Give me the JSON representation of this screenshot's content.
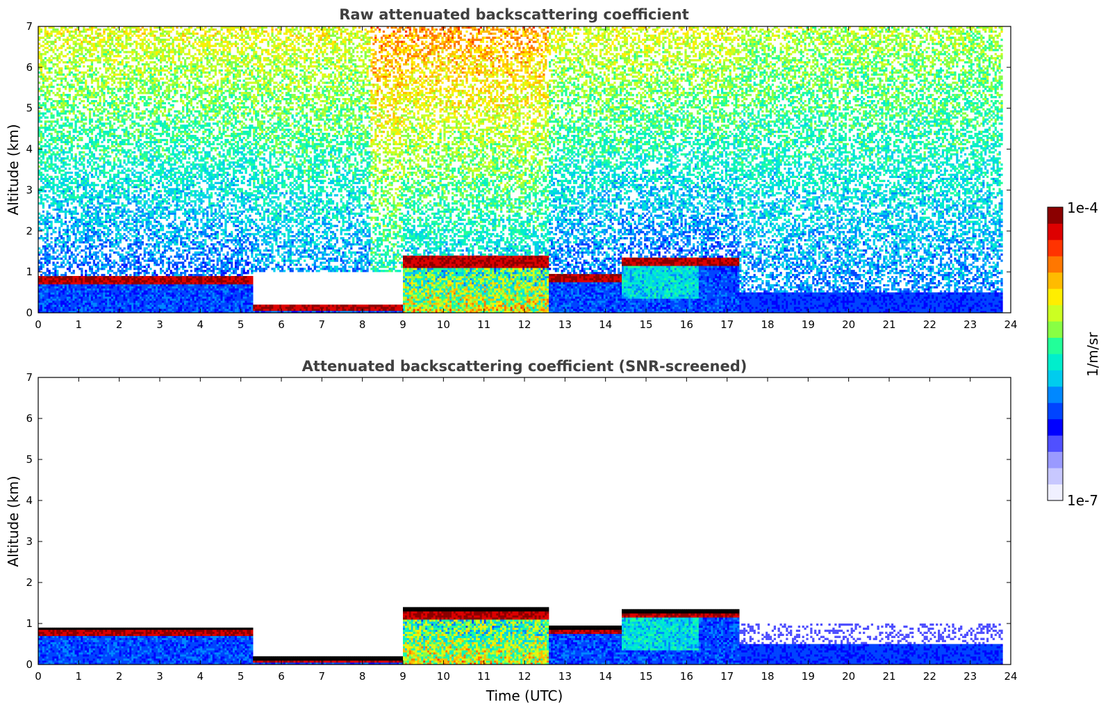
{
  "colors": {
    "title": "#404040",
    "colormap": [
      "#f0f0ff",
      "#c8c8ff",
      "#9a9aff",
      "#5050ff",
      "#0000ff",
      "#0044ff",
      "#0088ff",
      "#00ccee",
      "#00eecc",
      "#22ff99",
      "#88ff44",
      "#ccff22",
      "#ffee00",
      "#ffbb00",
      "#ff7700",
      "#ff3300",
      "#dd0000",
      "#8b0000"
    ],
    "cloud_top": "#000000"
  },
  "colorbar": {
    "max_label": "1e-4",
    "min_label": "1e-7",
    "unit_label": "1/m/sr",
    "scale": "log"
  },
  "chart_data": [
    {
      "type": "heatmap",
      "title": "Raw attenuated backscattering coefficient",
      "xlabel": "",
      "ylabel": "Altitude (km)",
      "xlim": [
        0,
        24
      ],
      "ylim": [
        0,
        7
      ],
      "xticks": [
        "0",
        "1",
        "2",
        "3",
        "4",
        "5",
        "6",
        "7",
        "8",
        "9",
        "10",
        "11",
        "12",
        "13",
        "14",
        "15",
        "16",
        "17",
        "18",
        "19",
        "20",
        "21",
        "22",
        "23",
        "24"
      ],
      "yticks": [
        "0",
        "1",
        "2",
        "3",
        "4",
        "5",
        "6",
        "7"
      ],
      "data_end_time": 23.8,
      "cloud_layers": [
        {
          "start": 0.0,
          "end": 5.3,
          "base_km": 0.72,
          "top_km": 0.92
        },
        {
          "start": 5.3,
          "end": 9.0,
          "base_km": 0.05,
          "top_km": 0.2
        },
        {
          "start": 9.0,
          "end": 12.6,
          "base_km": 1.1,
          "top_km": 1.4
        },
        {
          "start": 12.6,
          "end": 14.4,
          "base_km": 0.75,
          "top_km": 0.95
        },
        {
          "start": 14.4,
          "end": 17.3,
          "base_km": 1.15,
          "top_km": 1.35
        }
      ]
    },
    {
      "type": "heatmap",
      "title": "Attenuated backscattering coefficient (SNR-screened)",
      "xlabel": "Time (UTC)",
      "ylabel": "Altitude (km)",
      "xlim": [
        0,
        24
      ],
      "ylim": [
        0,
        7
      ],
      "xticks": [
        "0",
        "1",
        "2",
        "3",
        "4",
        "5",
        "6",
        "7",
        "8",
        "9",
        "10",
        "11",
        "12",
        "13",
        "14",
        "15",
        "16",
        "17",
        "18",
        "19",
        "20",
        "21",
        "22",
        "23",
        "24"
      ],
      "yticks": [
        "0",
        "1",
        "2",
        "3",
        "4",
        "5",
        "6",
        "7"
      ],
      "data_end_time": 23.8,
      "cloud_layers": [
        {
          "start": 0.0,
          "end": 5.3,
          "base_km": 0.72,
          "top_km": 0.92
        },
        {
          "start": 5.3,
          "end": 9.0,
          "base_km": 0.05,
          "top_km": 0.2
        },
        {
          "start": 9.0,
          "end": 12.6,
          "base_km": 1.1,
          "top_km": 1.4
        },
        {
          "start": 12.6,
          "end": 14.4,
          "base_km": 0.75,
          "top_km": 0.95
        },
        {
          "start": 14.4,
          "end": 17.3,
          "base_km": 1.15,
          "top_km": 1.35
        }
      ]
    }
  ]
}
